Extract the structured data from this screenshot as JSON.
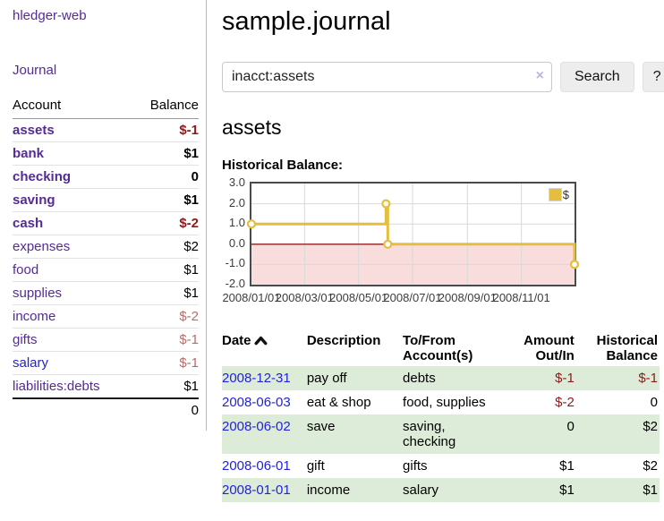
{
  "app": {
    "brand": "hledger-web",
    "nav_journal": "Journal"
  },
  "sidebar": {
    "accounts_header": {
      "account": "Account",
      "balance": "Balance"
    },
    "accounts": [
      {
        "name": "assets",
        "indent": 1,
        "bold": true,
        "link_color": "purple",
        "balance": "$-1",
        "balance_cls": "neg-strong"
      },
      {
        "name": "bank",
        "indent": 2,
        "bold": true,
        "link_color": "purple",
        "balance": "$1",
        "balance_cls": ""
      },
      {
        "name": "checking",
        "indent": 3,
        "bold": true,
        "link_color": "purple",
        "balance": "0",
        "balance_cls": ""
      },
      {
        "name": "saving",
        "indent": 3,
        "bold": true,
        "link_color": "purple",
        "balance": "$1",
        "balance_cls": ""
      },
      {
        "name": "cash",
        "indent": 2,
        "bold": true,
        "link_color": "purple",
        "balance": "$-2",
        "balance_cls": "neg-strong"
      },
      {
        "name": "expenses",
        "indent": 1,
        "bold": false,
        "link_color": "purple",
        "balance": "$2",
        "balance_cls": ""
      },
      {
        "name": "food",
        "indent": 2,
        "bold": false,
        "link_color": "purple",
        "balance": "$1",
        "balance_cls": ""
      },
      {
        "name": "supplies",
        "indent": 2,
        "bold": false,
        "link_color": "purple",
        "balance": "$1",
        "balance_cls": ""
      },
      {
        "name": "income",
        "indent": 1,
        "bold": false,
        "link_color": "purple",
        "balance": "$-2",
        "balance_cls": "neg-soft"
      },
      {
        "name": "gifts",
        "indent": 2,
        "bold": false,
        "link_color": "purple",
        "balance": "$-1",
        "balance_cls": "neg-soft"
      },
      {
        "name": "salary",
        "indent": 2,
        "bold": false,
        "link_color": "blue",
        "balance": "$-1",
        "balance_cls": "neg-soft"
      },
      {
        "name": "liabilities:debts",
        "indent": 1,
        "bold": false,
        "link_color": "purple",
        "balance": "$1",
        "balance_cls": ""
      }
    ],
    "total": "0"
  },
  "header": {
    "title": "sample.journal"
  },
  "search": {
    "value": "inacct:assets",
    "clear_icon": "×",
    "button_label": "Search",
    "help_label": "?"
  },
  "account_page": {
    "heading": "assets",
    "chart_label": "Historical Balance:"
  },
  "chart_data": {
    "type": "line",
    "step": true,
    "title": "Historical Balance:",
    "legend": [
      {
        "label": "$",
        "color": "#e5be3f"
      }
    ],
    "points": [
      [
        "2008-01-01",
        1
      ],
      [
        "2008-06-01",
        2
      ],
      [
        "2008-06-03",
        0
      ],
      [
        "2008-12-31",
        -1
      ]
    ],
    "xlim": [
      "2008-01-01",
      "2008-12-31"
    ],
    "ylim": [
      -2,
      3
    ],
    "y_ticks": [
      {
        "v": 3,
        "label": "3.0"
      },
      {
        "v": 2,
        "label": "2.0"
      },
      {
        "v": 1,
        "label": "1.0"
      },
      {
        "v": 0,
        "label": "0.0"
      },
      {
        "v": -1,
        "label": "-1.0"
      },
      {
        "v": -2,
        "label": "-2.0"
      }
    ],
    "x_ticks": [
      {
        "date": "2008-01-01",
        "label": "2008/01/01"
      },
      {
        "date": "2008-03-01",
        "label": "2008/03/01"
      },
      {
        "date": "2008-05-01",
        "label": "2008/05/01"
      },
      {
        "date": "2008-07-01",
        "label": "2008/07/01"
      },
      {
        "date": "2008-09-01",
        "label": "2008/09/01"
      },
      {
        "date": "2008-11-01",
        "label": "2008/11/01"
      }
    ],
    "series_color": "#e5be3f",
    "negative_region_color": "#f9dcdc",
    "zero_line_color": "#8f1f1f",
    "grid_color": "#d9d9d9",
    "legend_position": "top-right",
    "grid": true
  },
  "register": {
    "columns": {
      "date": "Date",
      "description": "Description",
      "accounts": "To/From Account(s)",
      "amount": "Amount Out/In",
      "balance": "Historical Balance"
    },
    "rows": [
      {
        "date": "2008-12-31",
        "description": "pay off",
        "accounts": "debts",
        "amount": "$-1",
        "amount_cls": "neg-strong",
        "balance": "$-1",
        "balance_cls": "neg-strong"
      },
      {
        "date": "2008-06-03",
        "description": "eat & shop",
        "accounts": "food, supplies",
        "amount": "$-2",
        "amount_cls": "neg-strong",
        "balance": "0",
        "balance_cls": ""
      },
      {
        "date": "2008-06-02",
        "description": "save",
        "accounts": "saving, checking",
        "amount": "0",
        "amount_cls": "",
        "balance": "$2",
        "balance_cls": ""
      },
      {
        "date": "2008-06-01",
        "description": "gift",
        "accounts": "gifts",
        "amount": "$1",
        "amount_cls": "",
        "balance": "$2",
        "balance_cls": ""
      },
      {
        "date": "2008-01-01",
        "description": "income",
        "accounts": "salary",
        "amount": "$1",
        "amount_cls": "",
        "balance": "$1",
        "balance_cls": ""
      }
    ]
  }
}
